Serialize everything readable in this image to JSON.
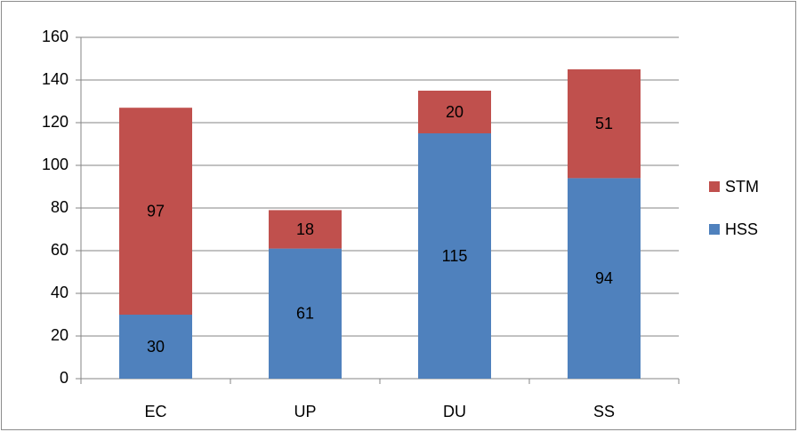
{
  "chart_data": {
    "type": "bar",
    "stacked": true,
    "categories": [
      "EC",
      "UP",
      "DU",
      "SS"
    ],
    "series": [
      {
        "name": "HSS",
        "color": "#4f81bd",
        "values": [
          30,
          61,
          115,
          94
        ]
      },
      {
        "name": "STM",
        "color": "#c0504d",
        "values": [
          97,
          18,
          20,
          51
        ]
      }
    ],
    "ylim": [
      0,
      160
    ],
    "yticks": [
      0,
      20,
      40,
      60,
      80,
      100,
      120,
      140,
      160
    ],
    "grid": true,
    "legend": "right"
  }
}
